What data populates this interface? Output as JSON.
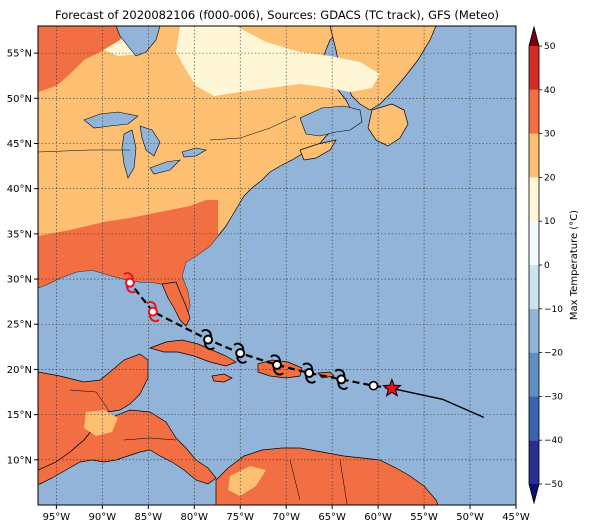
{
  "title": "Forecast of 2020082106 (f000-006), Sources: GDACS (TC track), GFS (Meteo)",
  "map": {
    "lon_range": [
      -97,
      -45
    ],
    "lat_range": [
      5,
      58
    ],
    "lon_ticks": [
      {
        "lon": -95,
        "label": "95°W"
      },
      {
        "lon": -90,
        "label": "90°W"
      },
      {
        "lon": -85,
        "label": "85°W"
      },
      {
        "lon": -80,
        "label": "80°W"
      },
      {
        "lon": -75,
        "label": "75°W"
      },
      {
        "lon": -70,
        "label": "70°W"
      },
      {
        "lon": -65,
        "label": "65°W"
      },
      {
        "lon": -60,
        "label": "60°W"
      },
      {
        "lon": -55,
        "label": "55°W"
      },
      {
        "lon": -50,
        "label": "50°W"
      },
      {
        "lon": -45,
        "label": "45°W"
      }
    ],
    "lat_ticks": [
      {
        "lat": 55,
        "label": "55°N"
      },
      {
        "lat": 50,
        "label": "50°N"
      },
      {
        "lat": 45,
        "label": "45°N"
      },
      {
        "lat": 40,
        "label": "40°N"
      },
      {
        "lat": 35,
        "label": "35°N"
      },
      {
        "lat": 30,
        "label": "30°N"
      },
      {
        "lat": 25,
        "label": "25°N"
      },
      {
        "lat": 20,
        "label": "20°N"
      },
      {
        "lat": 15,
        "label": "15°N"
      },
      {
        "lat": 10,
        "label": "10°N"
      }
    ],
    "grid": true,
    "colors": {
      "ocean": "#92b4d9",
      "land_10_20": "#fdbf71",
      "land_20_30": "#f26e43",
      "land_0_10": "#fff6d6",
      "land_lakes": "#92b4d9"
    }
  },
  "colorbar": {
    "label": "Max Temperature (°C)",
    "min": -50,
    "max": 50,
    "step": 10,
    "ticks": [
      "50",
      "40",
      "30",
      "20",
      "10",
      "0",
      "−10",
      "−20",
      "−30",
      "−40",
      "−50"
    ],
    "colors": [
      "#2a2f8f",
      "#3a64ad",
      "#5f8fc3",
      "#92b4d9",
      "#cae4ef",
      "#f3fbfd",
      "#fff6d6",
      "#fdbf71",
      "#f26e43",
      "#d42d27",
      "#a50026"
    ],
    "extend_low": "#0c0f6e",
    "extend_high": "#7a0015"
  },
  "track": {
    "past": [
      {
        "lon": -48.5,
        "lat": 14.7
      },
      {
        "lon": -53.0,
        "lat": 16.7
      },
      {
        "lon": -58.5,
        "lat": 17.9
      }
    ],
    "current": {
      "lon": -58.5,
      "lat": 17.9
    },
    "forecast": [
      {
        "lon": -60.5,
        "lat": 18.2
      },
      {
        "lon": -64.0,
        "lat": 18.9
      },
      {
        "lon": -67.5,
        "lat": 19.6
      },
      {
        "lon": -71.0,
        "lat": 20.5
      },
      {
        "lon": -75.0,
        "lat": 21.8
      },
      {
        "lon": -78.5,
        "lat": 23.3
      },
      {
        "lon": -84.5,
        "lat": 26.4
      },
      {
        "lon": -87.0,
        "lat": 29.6
      }
    ],
    "storm_symbol_colors": {
      "forecast": "#000000",
      "landfall": "#e8141b"
    }
  }
}
